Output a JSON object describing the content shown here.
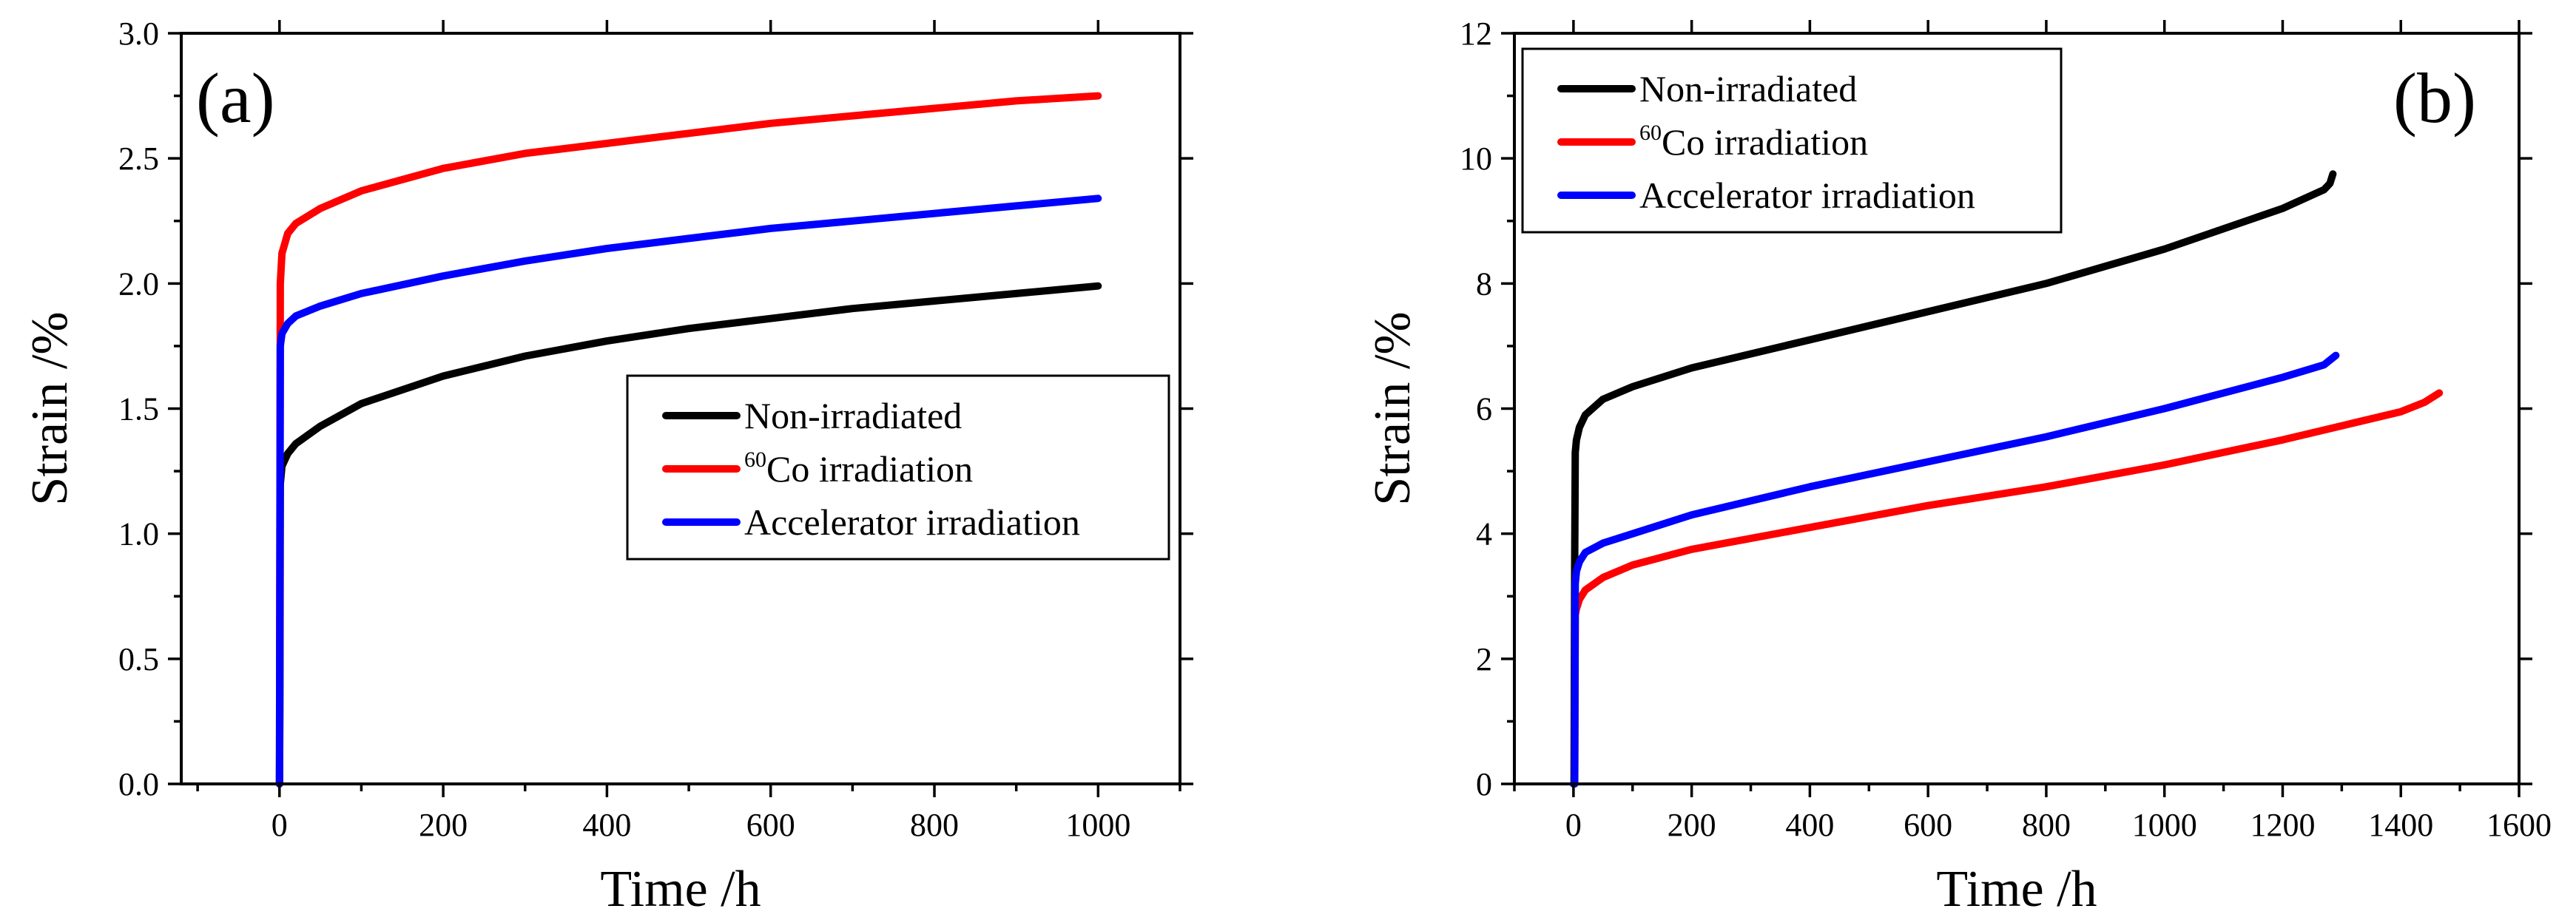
{
  "chart_data": [
    {
      "type": "line",
      "panel_label": "(a)",
      "xlabel": "Time /h",
      "ylabel": "Strain /%",
      "xlim": [
        -120,
        1100
      ],
      "ylim": [
        0,
        3.0
      ],
      "xticks": [
        0,
        200,
        400,
        600,
        800,
        1000
      ],
      "xtick_labels": [
        "0",
        "200",
        "400",
        "600",
        "800",
        "1000"
      ],
      "yticks": [
        0,
        0.5,
        1.0,
        1.5,
        2.0,
        2.5,
        3.0
      ],
      "ytick_labels": [
        "0.0",
        "0.5",
        "1.0",
        "1.5",
        "2.0",
        "2.5",
        "3.0"
      ],
      "legend_position": "center-right",
      "series": [
        {
          "name": "Non-irradiated",
          "color": "#000000",
          "x": [
            0,
            0.5,
            1,
            3,
            10,
            20,
            50,
            100,
            200,
            300,
            400,
            500,
            600,
            700,
            800,
            900,
            1000
          ],
          "y": [
            0,
            0.3,
            1.2,
            1.27,
            1.32,
            1.36,
            1.43,
            1.52,
            1.63,
            1.71,
            1.77,
            1.82,
            1.86,
            1.9,
            1.93,
            1.96,
            1.99
          ]
        },
        {
          "name": "Co irradiation",
          "superscript": "60",
          "color": "#ff0000",
          "x": [
            0,
            0.5,
            1,
            3,
            10,
            20,
            50,
            100,
            200,
            300,
            400,
            500,
            600,
            700,
            800,
            900,
            1000
          ],
          "y": [
            0,
            0.9,
            2.0,
            2.12,
            2.2,
            2.24,
            2.3,
            2.37,
            2.46,
            2.52,
            2.56,
            2.6,
            2.64,
            2.67,
            2.7,
            2.73,
            2.75
          ]
        },
        {
          "name": "Accelerator irradiation",
          "color": "#0000ff",
          "x": [
            0,
            0.5,
            1,
            3,
            10,
            20,
            50,
            100,
            200,
            300,
            400,
            500,
            600,
            700,
            800,
            900,
            1000
          ],
          "y": [
            0,
            0.8,
            1.75,
            1.8,
            1.84,
            1.87,
            1.91,
            1.96,
            2.03,
            2.09,
            2.14,
            2.18,
            2.22,
            2.25,
            2.28,
            2.31,
            2.34
          ]
        }
      ]
    },
    {
      "type": "line",
      "panel_label": "(b)",
      "xlabel": "Time /h",
      "ylabel": "Strain /%",
      "xlim": [
        -100,
        1600
      ],
      "ylim": [
        0,
        12
      ],
      "xticks": [
        0,
        200,
        400,
        600,
        800,
        1000,
        1200,
        1400,
        1600
      ],
      "xtick_labels": [
        "0",
        "200",
        "400",
        "600",
        "800",
        "1000",
        "1200",
        "1400",
        "1600"
      ],
      "yticks": [
        0,
        2,
        4,
        6,
        8,
        10,
        12
      ],
      "ytick_labels": [
        "0",
        "2",
        "4",
        "6",
        "8",
        "10",
        "12"
      ],
      "legend_position": "top-left",
      "series": [
        {
          "name": "Non-irradiated",
          "color": "#000000",
          "x": [
            0,
            1,
            2,
            3,
            5,
            10,
            20,
            50,
            100,
            200,
            400,
            600,
            800,
            1000,
            1200,
            1270,
            1280,
            1285
          ],
          "y": [
            0,
            0,
            3.5,
            5.3,
            5.5,
            5.7,
            5.9,
            6.15,
            6.35,
            6.65,
            7.1,
            7.55,
            8.0,
            8.55,
            9.2,
            9.5,
            9.6,
            9.75
          ]
        },
        {
          "name": "Co irradiation",
          "superscript": "60",
          "color": "#ff0000",
          "x": [
            0,
            1,
            2,
            3,
            5,
            10,
            20,
            50,
            100,
            200,
            400,
            600,
            800,
            1000,
            1200,
            1400,
            1440,
            1465
          ],
          "y": [
            0,
            0,
            0,
            2.7,
            2.8,
            2.95,
            3.1,
            3.3,
            3.5,
            3.75,
            4.1,
            4.45,
            4.75,
            5.1,
            5.5,
            5.95,
            6.1,
            6.25
          ]
        },
        {
          "name": "Accelerator irradiation",
          "color": "#0000ff",
          "x": [
            0,
            1,
            2,
            3,
            5,
            10,
            20,
            50,
            100,
            200,
            400,
            600,
            800,
            1000,
            1200,
            1270,
            1290
          ],
          "y": [
            0,
            0,
            0,
            3.2,
            3.4,
            3.55,
            3.7,
            3.85,
            4.0,
            4.3,
            4.75,
            5.15,
            5.55,
            6.0,
            6.5,
            6.7,
            6.85
          ]
        }
      ]
    }
  ]
}
